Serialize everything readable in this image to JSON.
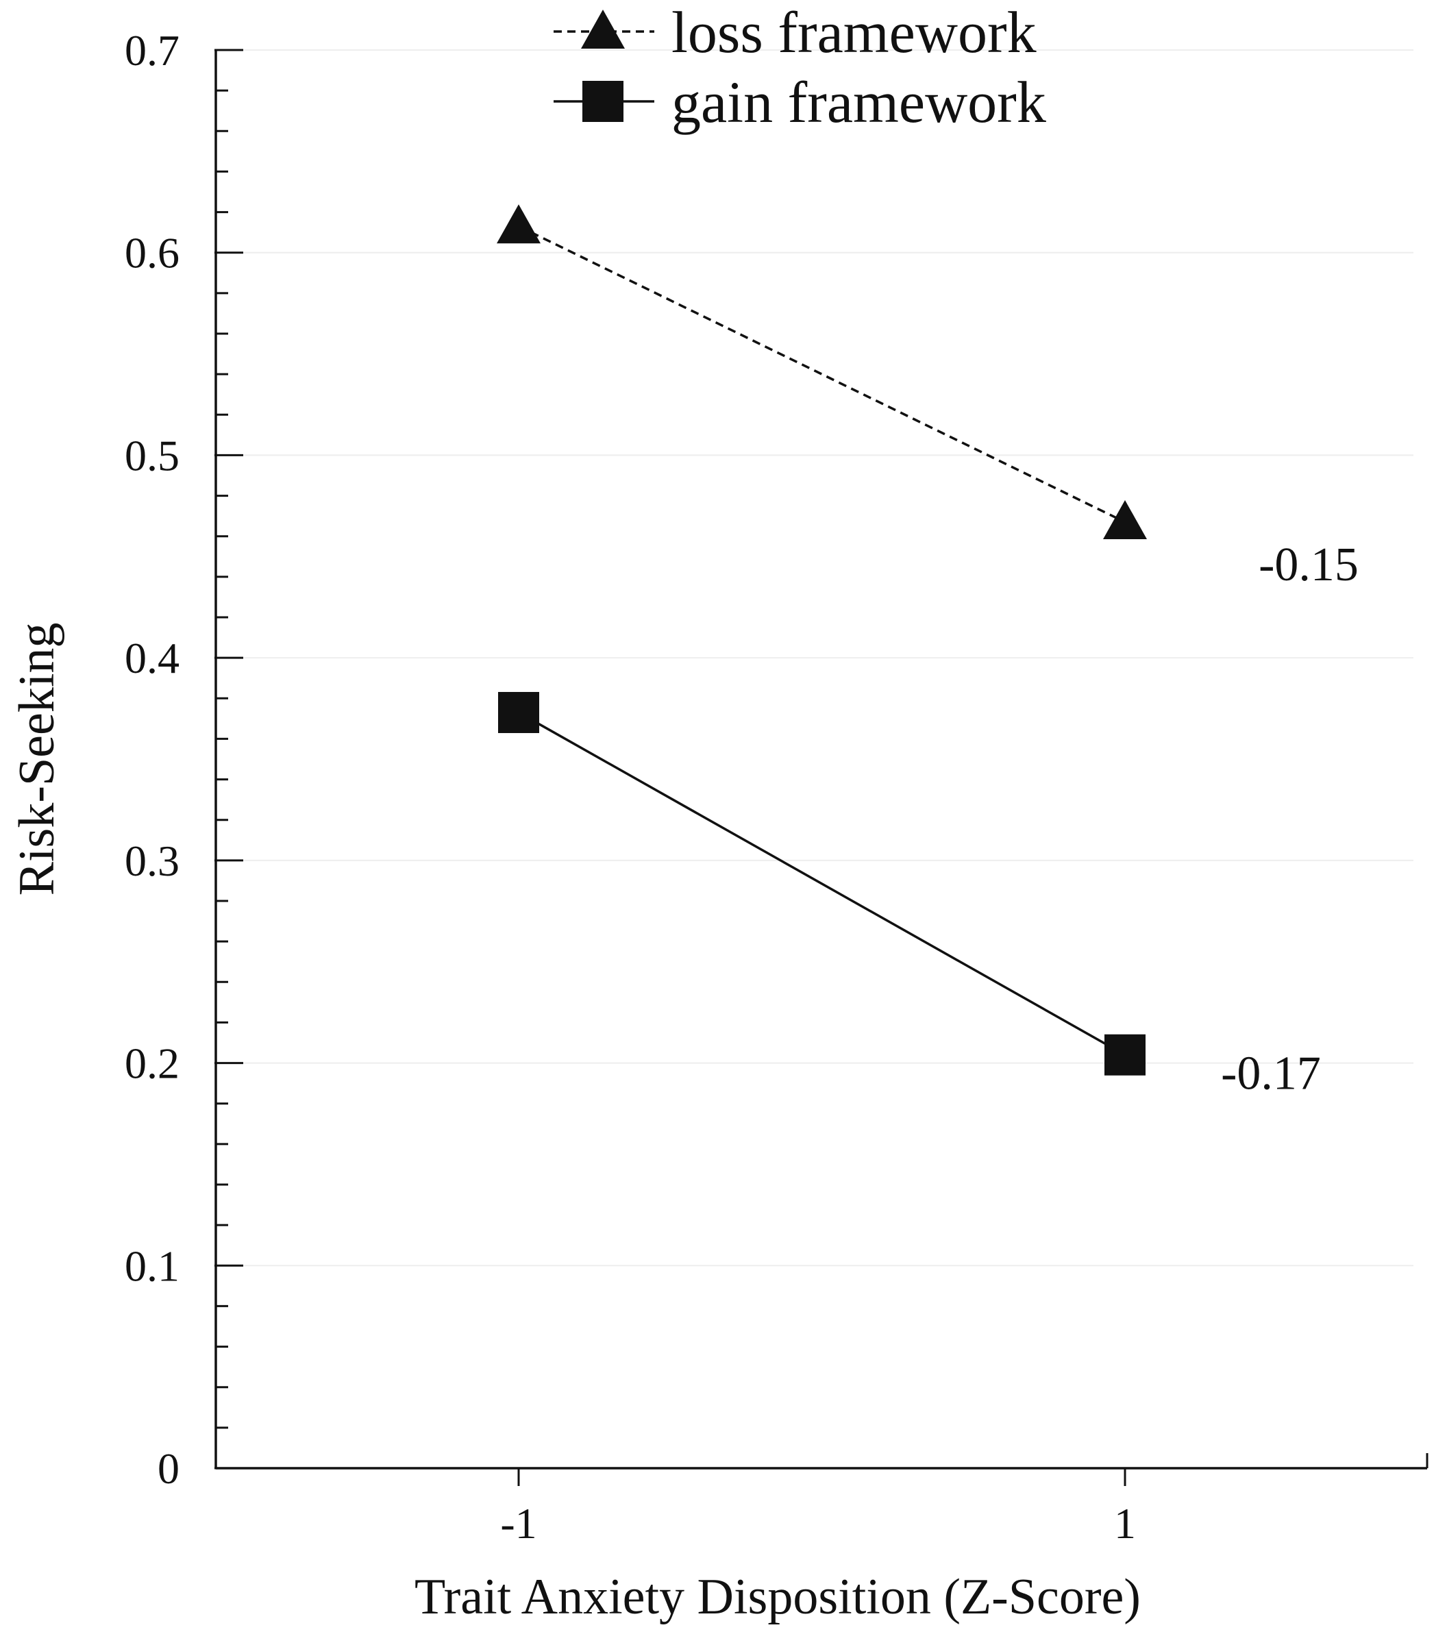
{
  "chart_data": {
    "type": "line",
    "xlabel": "Trait Anxiety Disposition (Z-Score)",
    "ylabel": "Risk-Seeking",
    "categories": [
      "-1",
      "1"
    ],
    "x": [
      -1,
      1
    ],
    "ylim": [
      0,
      0.7
    ],
    "y_ticks": [
      "0",
      "0.1",
      "0.2",
      "0.3",
      "0.4",
      "0.5",
      "0.6",
      "0.7"
    ],
    "y_minor_step": 0.02,
    "grid": "faint horizontal lines at major ticks",
    "legend_position": "top-center",
    "series": [
      {
        "name": "loss framework",
        "values": [
          0.613,
          0.467
        ],
        "line_style": "dashed",
        "marker": "triangle",
        "color": "#111111"
      },
      {
        "name": "gain framework",
        "values": [
          0.373,
          0.204
        ],
        "line_style": "solid",
        "marker": "square",
        "color": "#111111"
      }
    ],
    "annotations": [
      {
        "text": "-0.15",
        "series": "loss framework"
      },
      {
        "text": "-0.17",
        "series": "gain framework"
      }
    ]
  }
}
